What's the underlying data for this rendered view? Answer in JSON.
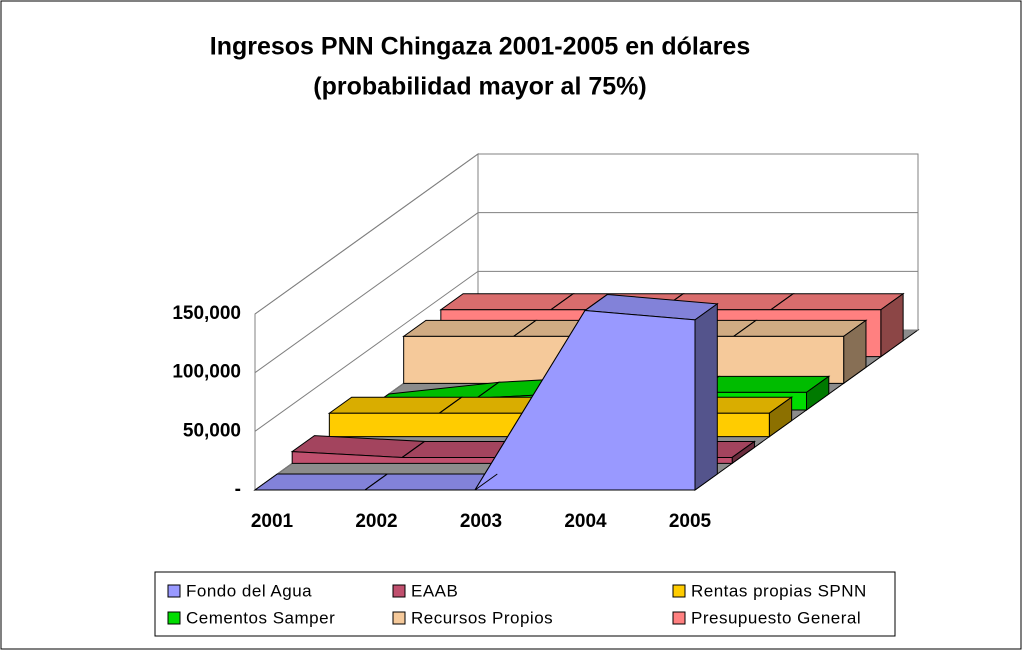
{
  "chart_data": {
    "type": "area3d",
    "title": [
      "Ingresos PNN Chingaza 2001-2005 en dólares",
      "(probabilidad mayor al 75%)"
    ],
    "categories": [
      "2001",
      "2002",
      "2003",
      "2004",
      "2005"
    ],
    "series": [
      {
        "name": "Fondo del Agua",
        "color": "#9999ff",
        "values": [
          0,
          0,
          0,
          153000,
          145000
        ]
      },
      {
        "name": "EAAB",
        "color": "#c0506e",
        "values": [
          10000,
          5000,
          5000,
          5000,
          5000
        ]
      },
      {
        "name": "Rentas propias SPNN",
        "color": "#ffcc00",
        "values": [
          20000,
          20000,
          20000,
          20000,
          20000
        ]
      },
      {
        "name": "Cementos Samper",
        "color": "#00dd00",
        "values": [
          0,
          10000,
          15000,
          15000,
          15000
        ]
      },
      {
        "name": "Recursos Propios",
        "color": "#f5c99a",
        "values": [
          40000,
          40000,
          40000,
          40000,
          40000
        ]
      },
      {
        "name": "Presupuesto General",
        "color": "#ff8080",
        "values": [
          40000,
          40000,
          40000,
          40000,
          40000
        ]
      }
    ],
    "ylim": [
      0,
      150000
    ],
    "yticks": [
      {
        "value": 0,
        "label": "-"
      },
      {
        "value": 50000,
        "label": "50,000"
      },
      {
        "value": 100000,
        "label": "100,000"
      },
      {
        "value": 150000,
        "label": "150,000"
      }
    ],
    "grid": true
  }
}
